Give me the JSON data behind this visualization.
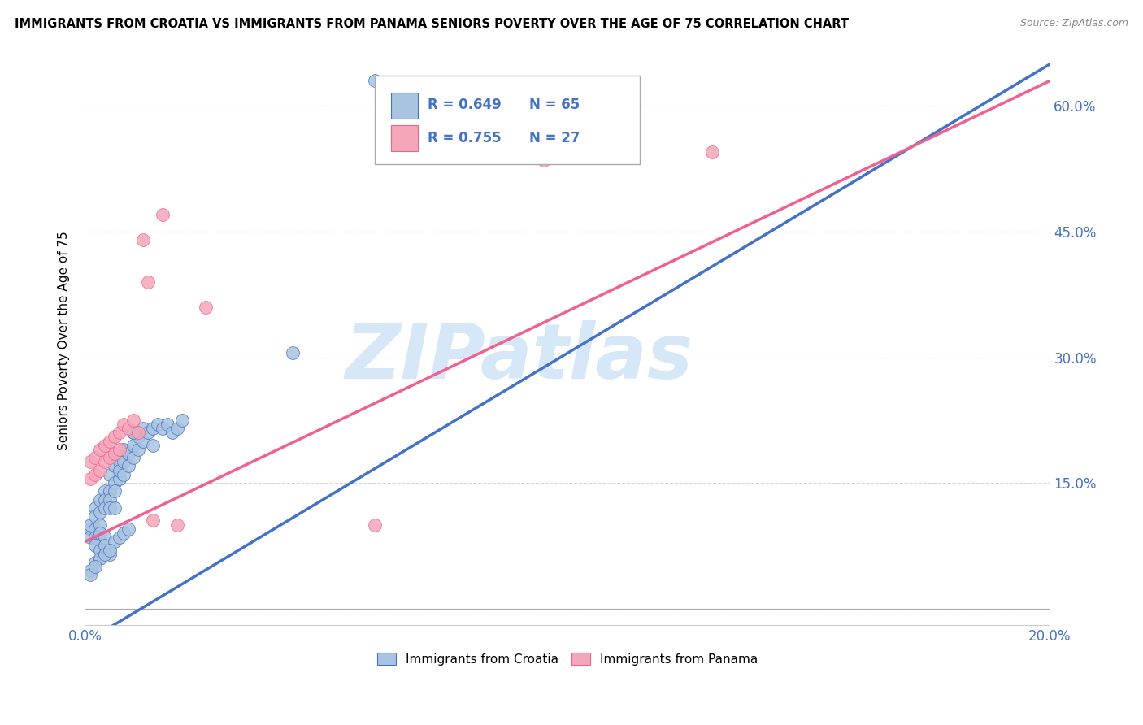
{
  "title": "IMMIGRANTS FROM CROATIA VS IMMIGRANTS FROM PANAMA SENIORS POVERTY OVER THE AGE OF 75 CORRELATION CHART",
  "source": "Source: ZipAtlas.com",
  "ylabel": "Seniors Poverty Over the Age of 75",
  "x_min": 0.0,
  "x_max": 0.2,
  "y_min": -0.02,
  "y_max": 0.66,
  "x_ticks": [
    0.0,
    0.04,
    0.08,
    0.12,
    0.16,
    0.2
  ],
  "x_tick_labels": [
    "0.0%",
    "",
    "",
    "",
    "",
    "20.0%"
  ],
  "y_ticks": [
    0.0,
    0.15,
    0.3,
    0.45,
    0.6
  ],
  "y_tick_labels": [
    "",
    "15.0%",
    "30.0%",
    "45.0%",
    "60.0%"
  ],
  "croatia_color": "#a8c4e0",
  "panama_color": "#f4a7b9",
  "croatia_line_color": "#4472c4",
  "panama_line_color": "#f06090",
  "R_croatia": 0.649,
  "N_croatia": 65,
  "R_panama": 0.755,
  "N_panama": 27,
  "watermark": "ZIPatlas",
  "watermark_color": "#d6e8f7",
  "croatia_scatter_x": [
    0.001,
    0.001,
    0.001,
    0.002,
    0.002,
    0.002,
    0.002,
    0.002,
    0.003,
    0.003,
    0.003,
    0.003,
    0.004,
    0.004,
    0.004,
    0.004,
    0.005,
    0.005,
    0.005,
    0.005,
    0.006,
    0.006,
    0.006,
    0.006,
    0.007,
    0.007,
    0.007,
    0.008,
    0.008,
    0.008,
    0.009,
    0.009,
    0.01,
    0.01,
    0.01,
    0.011,
    0.011,
    0.012,
    0.012,
    0.013,
    0.014,
    0.014,
    0.015,
    0.016,
    0.017,
    0.018,
    0.019,
    0.02,
    0.003,
    0.004,
    0.005,
    0.006,
    0.007,
    0.008,
    0.009,
    0.01,
    0.002,
    0.003,
    0.004,
    0.005,
    0.001,
    0.001,
    0.002,
    0.043,
    0.06
  ],
  "croatia_scatter_y": [
    0.095,
    0.1,
    0.085,
    0.12,
    0.11,
    0.095,
    0.085,
    0.075,
    0.1,
    0.13,
    0.115,
    0.09,
    0.14,
    0.13,
    0.12,
    0.085,
    0.14,
    0.16,
    0.13,
    0.12,
    0.15,
    0.17,
    0.14,
    0.12,
    0.155,
    0.175,
    0.165,
    0.16,
    0.175,
    0.19,
    0.17,
    0.185,
    0.18,
    0.195,
    0.21,
    0.19,
    0.205,
    0.2,
    0.215,
    0.21,
    0.195,
    0.215,
    0.22,
    0.215,
    0.22,
    0.21,
    0.215,
    0.225,
    0.07,
    0.075,
    0.065,
    0.08,
    0.085,
    0.09,
    0.095,
    0.21,
    0.055,
    0.06,
    0.065,
    0.07,
    0.045,
    0.04,
    0.05,
    0.305,
    0.63
  ],
  "panama_scatter_x": [
    0.001,
    0.001,
    0.002,
    0.002,
    0.003,
    0.003,
    0.004,
    0.004,
    0.005,
    0.005,
    0.006,
    0.006,
    0.007,
    0.007,
    0.008,
    0.009,
    0.01,
    0.011,
    0.012,
    0.013,
    0.014,
    0.016,
    0.019,
    0.025,
    0.06,
    0.095,
    0.13
  ],
  "panama_scatter_y": [
    0.155,
    0.175,
    0.16,
    0.18,
    0.165,
    0.19,
    0.175,
    0.195,
    0.18,
    0.2,
    0.185,
    0.205,
    0.19,
    0.21,
    0.22,
    0.215,
    0.225,
    0.21,
    0.44,
    0.39,
    0.105,
    0.47,
    0.1,
    0.36,
    0.1,
    0.535,
    0.545
  ]
}
